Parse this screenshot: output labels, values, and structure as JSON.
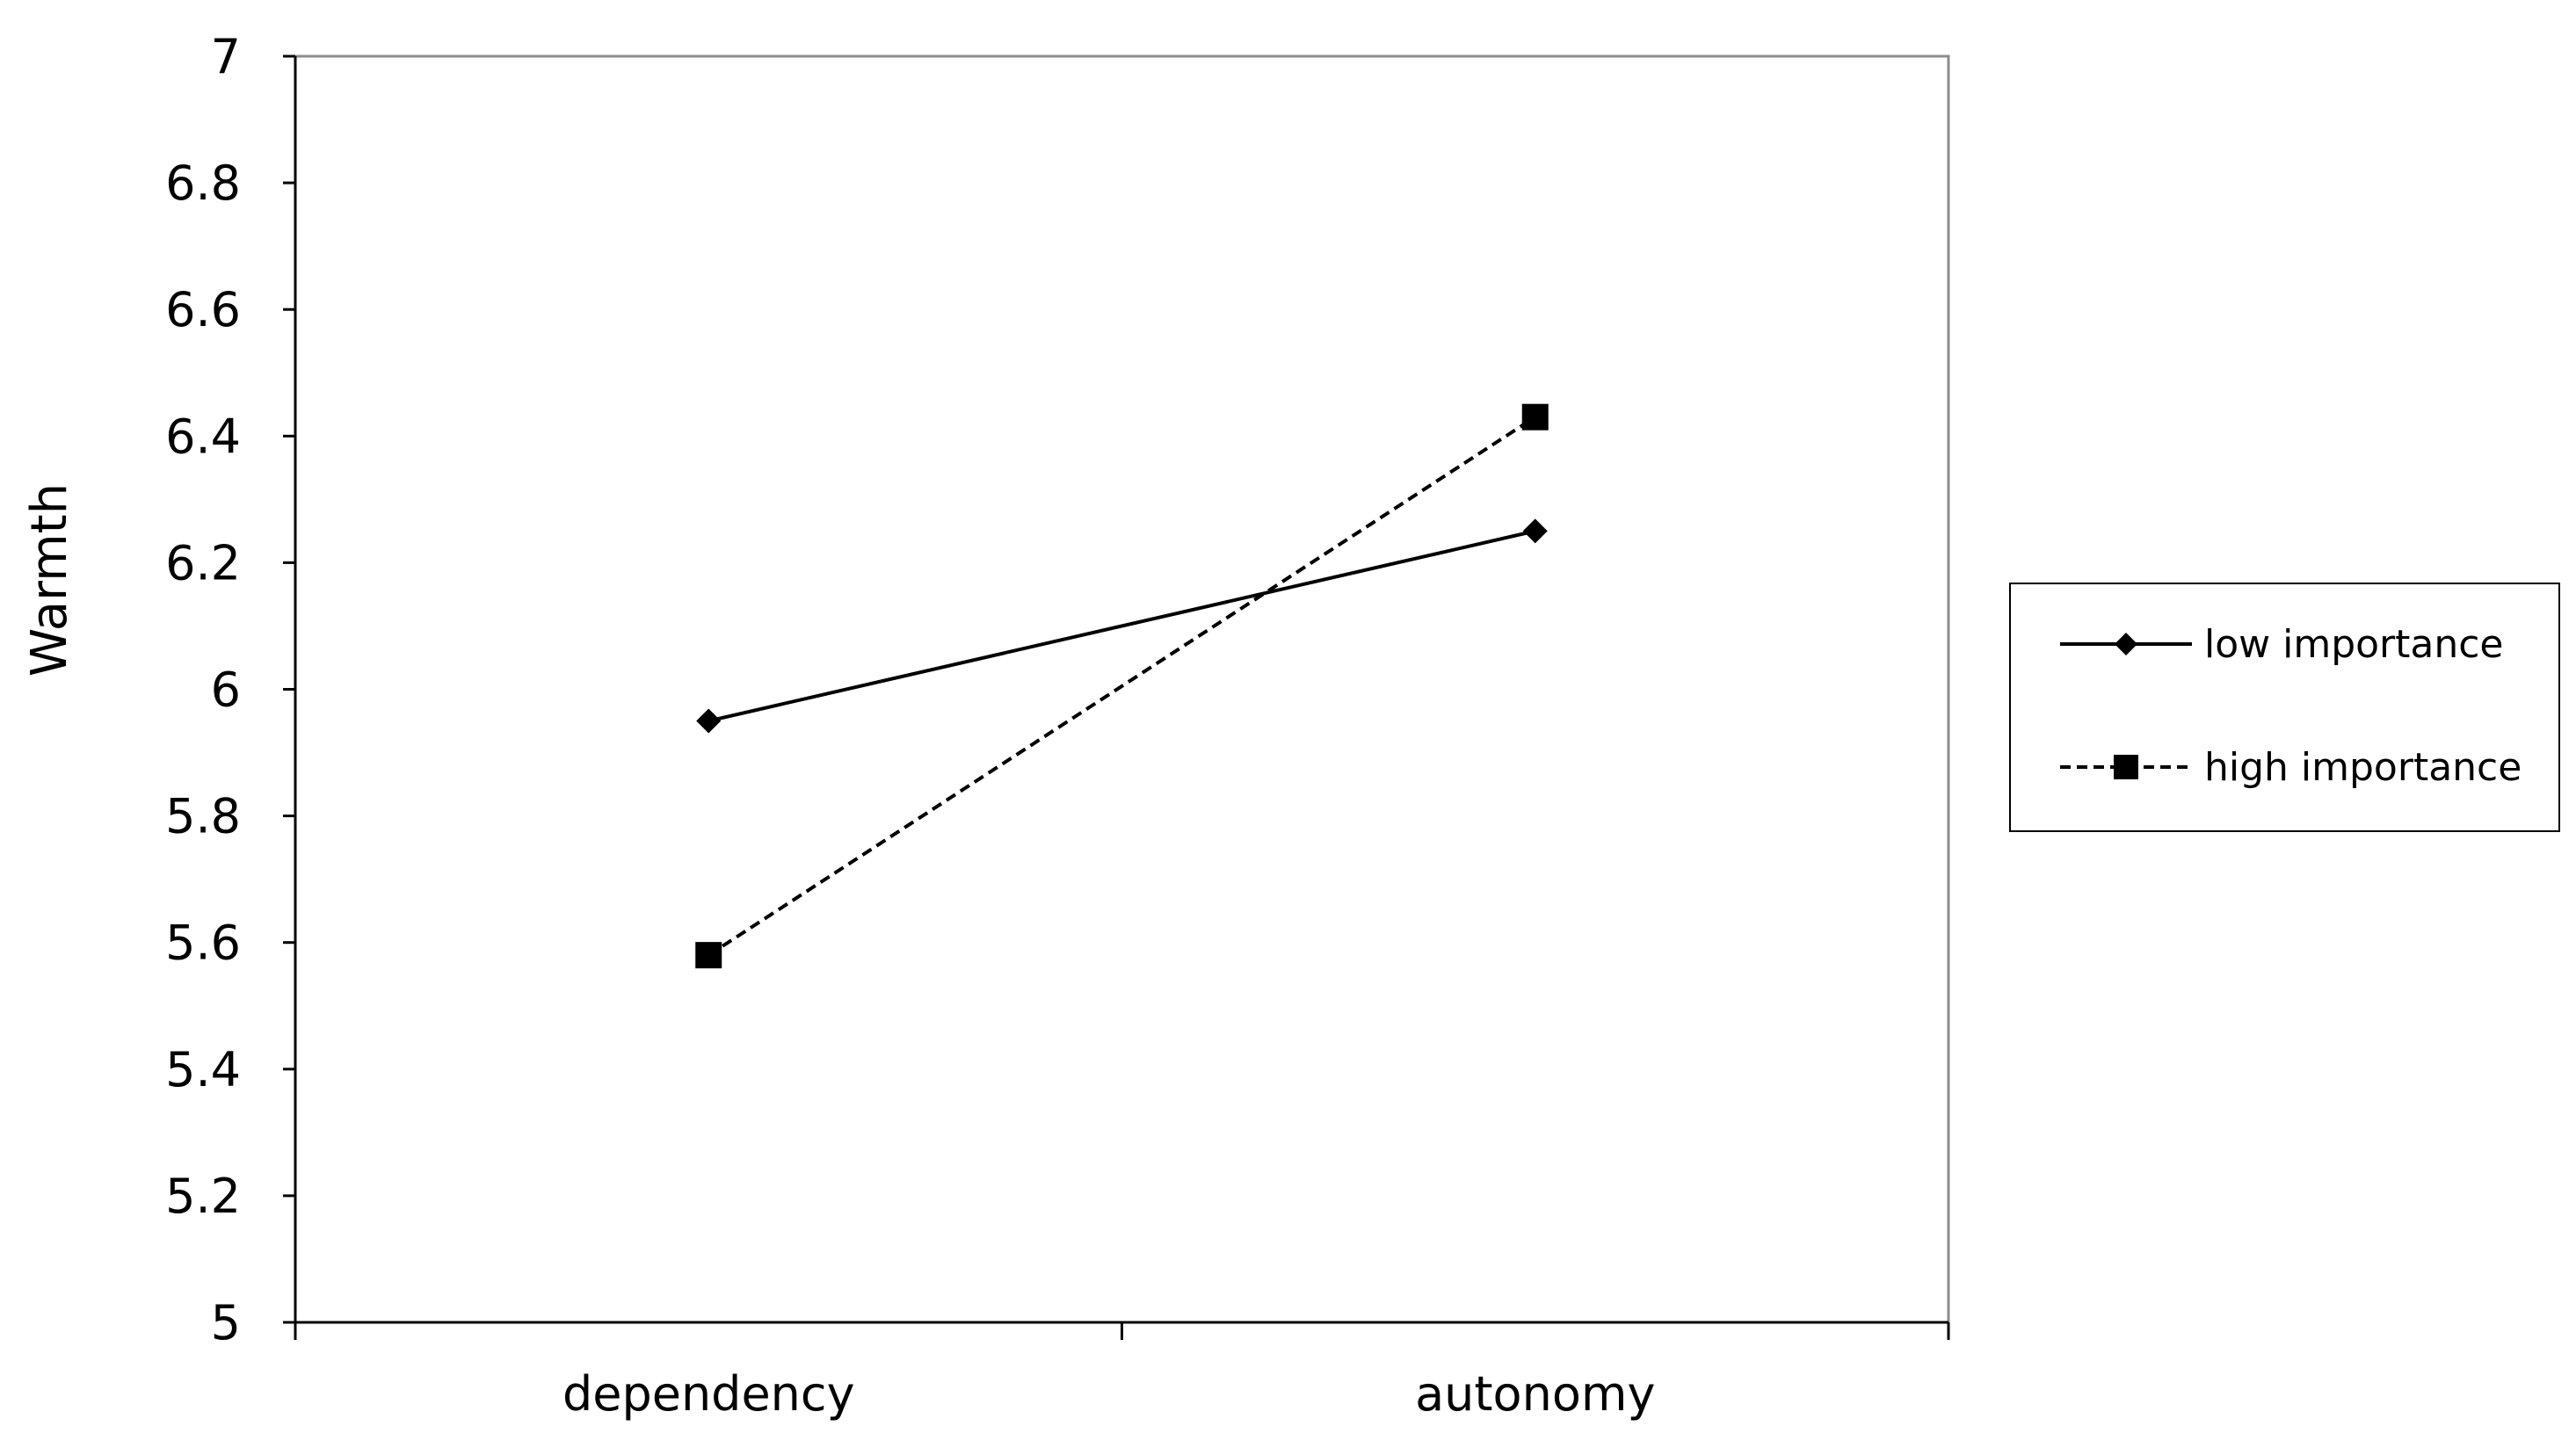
{
  "chart_data": {
    "type": "line",
    "categories": [
      "dependency",
      "autonomy"
    ],
    "series": [
      {
        "name": "low importance",
        "values": [
          5.95,
          6.25
        ],
        "line_style": "solid",
        "marker": "diamond-icon",
        "color": "#000000"
      },
      {
        "name": "high importance",
        "values": [
          5.58,
          6.43
        ],
        "line_style": "dashed",
        "marker": "square-icon",
        "color": "#000000"
      }
    ],
    "ylabel": "Warmth",
    "ylim": [
      5,
      7
    ],
    "yticks": [
      "5",
      "5.2",
      "5.4",
      "5.6",
      "5.8",
      "6",
      "6.2",
      "6.4",
      "6.6",
      "6.8",
      "7"
    ],
    "ytick_values": [
      5,
      5.2,
      5.4,
      5.6,
      5.8,
      6,
      6.2,
      6.4,
      6.6,
      6.8,
      7
    ],
    "grid": false,
    "legend_position": "right"
  }
}
